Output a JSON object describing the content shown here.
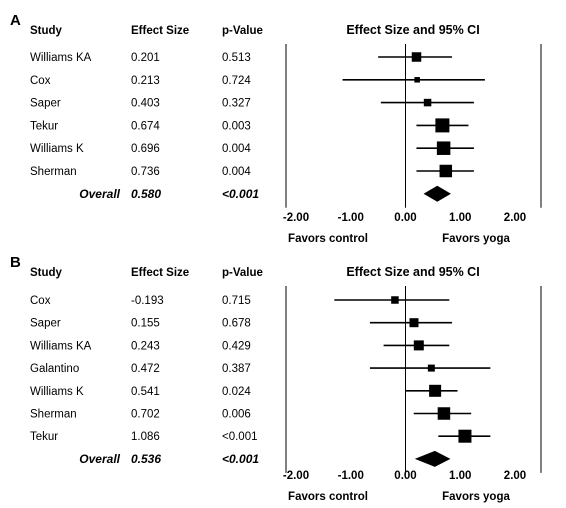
{
  "chart_data": [
    {
      "type": "forest",
      "panel_label": "A",
      "headers": {
        "study": "Study",
        "effect": "Effect Size",
        "pvalue": "p-Value",
        "ci": "Effect Size and 95% CI"
      },
      "studies": [
        {
          "name": "Williams KA",
          "effect": "0.201",
          "p": "0.513",
          "es": 0.201,
          "lower": -0.5,
          "upper": 0.85,
          "weight": 0.55
        },
        {
          "name": "Cox",
          "effect": "0.213",
          "p": "0.724",
          "es": 0.213,
          "lower": -1.15,
          "upper": 1.45,
          "weight": 0.15
        },
        {
          "name": "Saper",
          "effect": "0.403",
          "p": "0.327",
          "es": 0.403,
          "lower": -0.45,
          "upper": 1.25,
          "weight": 0.35
        },
        {
          "name": "Tekur",
          "effect": "0.674",
          "p": "0.003",
          "es": 0.674,
          "lower": 0.2,
          "upper": 1.15,
          "weight": 1.0
        },
        {
          "name": "Williams K",
          "effect": "0.696",
          "p": "0.004",
          "es": 0.696,
          "lower": 0.2,
          "upper": 1.25,
          "weight": 0.95
        },
        {
          "name": "Sherman",
          "effect": "0.736",
          "p": "0.004",
          "es": 0.736,
          "lower": 0.2,
          "upper": 1.25,
          "weight": 0.85
        }
      ],
      "overall": {
        "label": "Overall",
        "effect": "0.580",
        "p": "<0.001",
        "es": 0.58,
        "lower": 0.33,
        "upper": 0.83
      },
      "xlim": [
        -2,
        2
      ],
      "ticks": [
        "-2.00",
        "-1.00",
        "0.00",
        "1.00",
        "2.00"
      ],
      "favors_left": "Favors control",
      "favors_right": "Favors yoga"
    },
    {
      "type": "forest",
      "panel_label": "B",
      "headers": {
        "study": "Study",
        "effect": "Effect Size",
        "pvalue": "p-Value",
        "ci": "Effect Size and 95% CI"
      },
      "studies": [
        {
          "name": "Cox",
          "effect": "-0.193",
          "p": "0.715",
          "es": -0.193,
          "lower": -1.3,
          "upper": 0.8,
          "weight": 0.35
        },
        {
          "name": "Saper",
          "effect": "0.155",
          "p": "0.678",
          "es": 0.155,
          "lower": -0.65,
          "upper": 0.85,
          "weight": 0.5
        },
        {
          "name": "Williams KA",
          "effect": "0.243",
          "p": "0.429",
          "es": 0.243,
          "lower": -0.4,
          "upper": 0.8,
          "weight": 0.6
        },
        {
          "name": "Galantino",
          "effect": "0.472",
          "p": "0.387",
          "es": 0.472,
          "lower": -0.65,
          "upper": 1.55,
          "weight": 0.3
        },
        {
          "name": "Williams K",
          "effect": "0.541",
          "p": "0.024",
          "es": 0.541,
          "lower": 0.0,
          "upper": 0.95,
          "weight": 0.8
        },
        {
          "name": "Sherman",
          "effect": "0.702",
          "p": "0.006",
          "es": 0.702,
          "lower": 0.15,
          "upper": 1.2,
          "weight": 0.85
        },
        {
          "name": "Tekur",
          "effect": "1.086",
          "p": "<0.001",
          "es": 1.086,
          "lower": 0.6,
          "upper": 1.55,
          "weight": 0.9
        }
      ],
      "overall": {
        "label": "Overall",
        "effect": "0.536",
        "p": "<0.001",
        "es": 0.536,
        "lower": 0.17,
        "upper": 0.82
      },
      "xlim": [
        -2,
        2
      ],
      "ticks": [
        "-2.00",
        "-1.00",
        "0.00",
        "1.00",
        "2.00"
      ],
      "favors_left": "Favors control",
      "favors_right": "Favors yoga"
    }
  ]
}
